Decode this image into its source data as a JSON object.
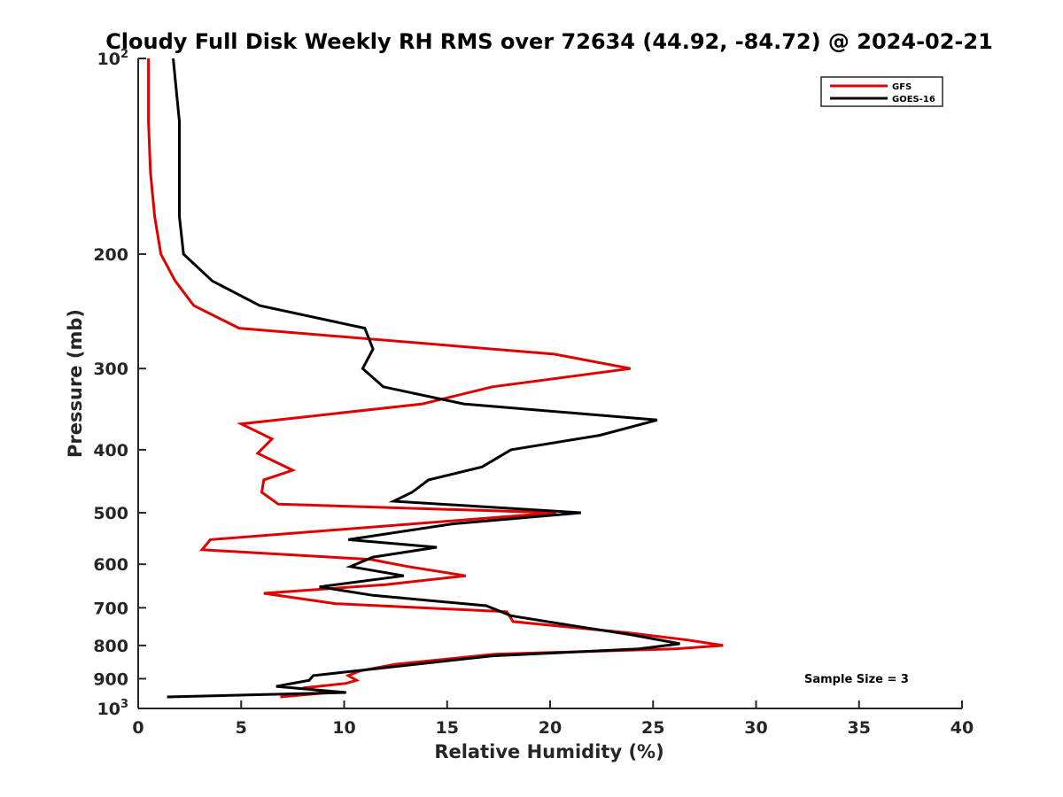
{
  "chart_data": {
    "type": "line",
    "title": "Cloudy Full Disk Weekly RH RMS over 72634 (44.92, -84.72) @ 2024-02-21",
    "xlabel": "Relative Humidity (%)",
    "ylabel": "Pressure (mb)",
    "xlim": [
      0,
      40
    ],
    "ylim": [
      100,
      1000
    ],
    "y_scale": "log",
    "y_reversed": true,
    "grid": false,
    "legend_position": "top-right",
    "x_ticks": [
      "0",
      "5",
      "10",
      "15",
      "20",
      "25",
      "30",
      "35",
      "40"
    ],
    "y_ticks": [
      {
        "value": 100,
        "base": "10",
        "exp": "2"
      },
      {
        "value": 200,
        "label": "200"
      },
      {
        "value": 300,
        "label": "300"
      },
      {
        "value": 400,
        "label": "400"
      },
      {
        "value": 500,
        "label": "500"
      },
      {
        "value": 600,
        "label": "600"
      },
      {
        "value": 700,
        "label": "700"
      },
      {
        "value": 800,
        "label": "800"
      },
      {
        "value": 900,
        "label": "900"
      },
      {
        "value": 1000,
        "base": "10",
        "exp": "3"
      }
    ],
    "annotation": "Sample Size = 3",
    "series": [
      {
        "name": "GFS",
        "color": "#e00000",
        "points": [
          [
            0.5,
            100
          ],
          [
            0.5,
            125
          ],
          [
            0.6,
            150
          ],
          [
            0.8,
            175
          ],
          [
            1.1,
            200
          ],
          [
            1.8,
            220
          ],
          [
            2.7,
            240
          ],
          [
            4.9,
            260
          ],
          [
            20.2,
            285
          ],
          [
            23.9,
            300
          ],
          [
            17.2,
            320
          ],
          [
            13.8,
            340
          ],
          [
            5.0,
            365
          ],
          [
            6.5,
            385
          ],
          [
            5.8,
            405
          ],
          [
            7.5,
            430
          ],
          [
            6.1,
            445
          ],
          [
            6.0,
            465
          ],
          [
            6.8,
            485
          ],
          [
            20.3,
            500
          ],
          [
            3.5,
            550
          ],
          [
            3.1,
            570
          ],
          [
            11.3,
            590
          ],
          [
            13.1,
            605
          ],
          [
            15.9,
            625
          ],
          [
            12.0,
            645
          ],
          [
            6.1,
            665
          ],
          [
            9.6,
            690
          ],
          [
            17.9,
            710
          ],
          [
            18.2,
            735
          ],
          [
            23.8,
            765
          ],
          [
            26.7,
            785
          ],
          [
            28.4,
            800
          ],
          [
            26.0,
            810
          ],
          [
            17.3,
            825
          ],
          [
            12.5,
            855
          ],
          [
            10.8,
            875
          ],
          [
            10.2,
            890
          ],
          [
            10.6,
            905
          ],
          [
            10.1,
            915
          ],
          [
            8.0,
            930
          ],
          [
            9.3,
            945
          ],
          [
            6.9,
            960
          ]
        ]
      },
      {
        "name": "GOES-16",
        "color": "#000000",
        "points": [
          [
            1.7,
            100
          ],
          [
            2.0,
            125
          ],
          [
            2.0,
            150
          ],
          [
            2.0,
            175
          ],
          [
            2.2,
            200
          ],
          [
            3.6,
            220
          ],
          [
            5.9,
            240
          ],
          [
            11.0,
            260
          ],
          [
            11.4,
            280
          ],
          [
            10.9,
            300
          ],
          [
            11.9,
            320
          ],
          [
            15.8,
            340
          ],
          [
            25.2,
            360
          ],
          [
            22.4,
            380
          ],
          [
            18.1,
            400
          ],
          [
            16.7,
            425
          ],
          [
            14.1,
            445
          ],
          [
            13.3,
            465
          ],
          [
            12.4,
            480
          ],
          [
            21.5,
            500
          ],
          [
            15.3,
            520
          ],
          [
            10.2,
            550
          ],
          [
            14.5,
            565
          ],
          [
            11.4,
            585
          ],
          [
            10.3,
            605
          ],
          [
            12.9,
            625
          ],
          [
            8.8,
            650
          ],
          [
            11.4,
            670
          ],
          [
            16.9,
            695
          ],
          [
            18.1,
            720
          ],
          [
            21.0,
            745
          ],
          [
            23.9,
            770
          ],
          [
            26.3,
            795
          ],
          [
            24.3,
            810
          ],
          [
            17.2,
            830
          ],
          [
            12.8,
            860
          ],
          [
            8.5,
            890
          ],
          [
            8.3,
            905
          ],
          [
            6.7,
            925
          ],
          [
            10.1,
            945
          ],
          [
            1.4,
            960
          ]
        ]
      }
    ]
  }
}
